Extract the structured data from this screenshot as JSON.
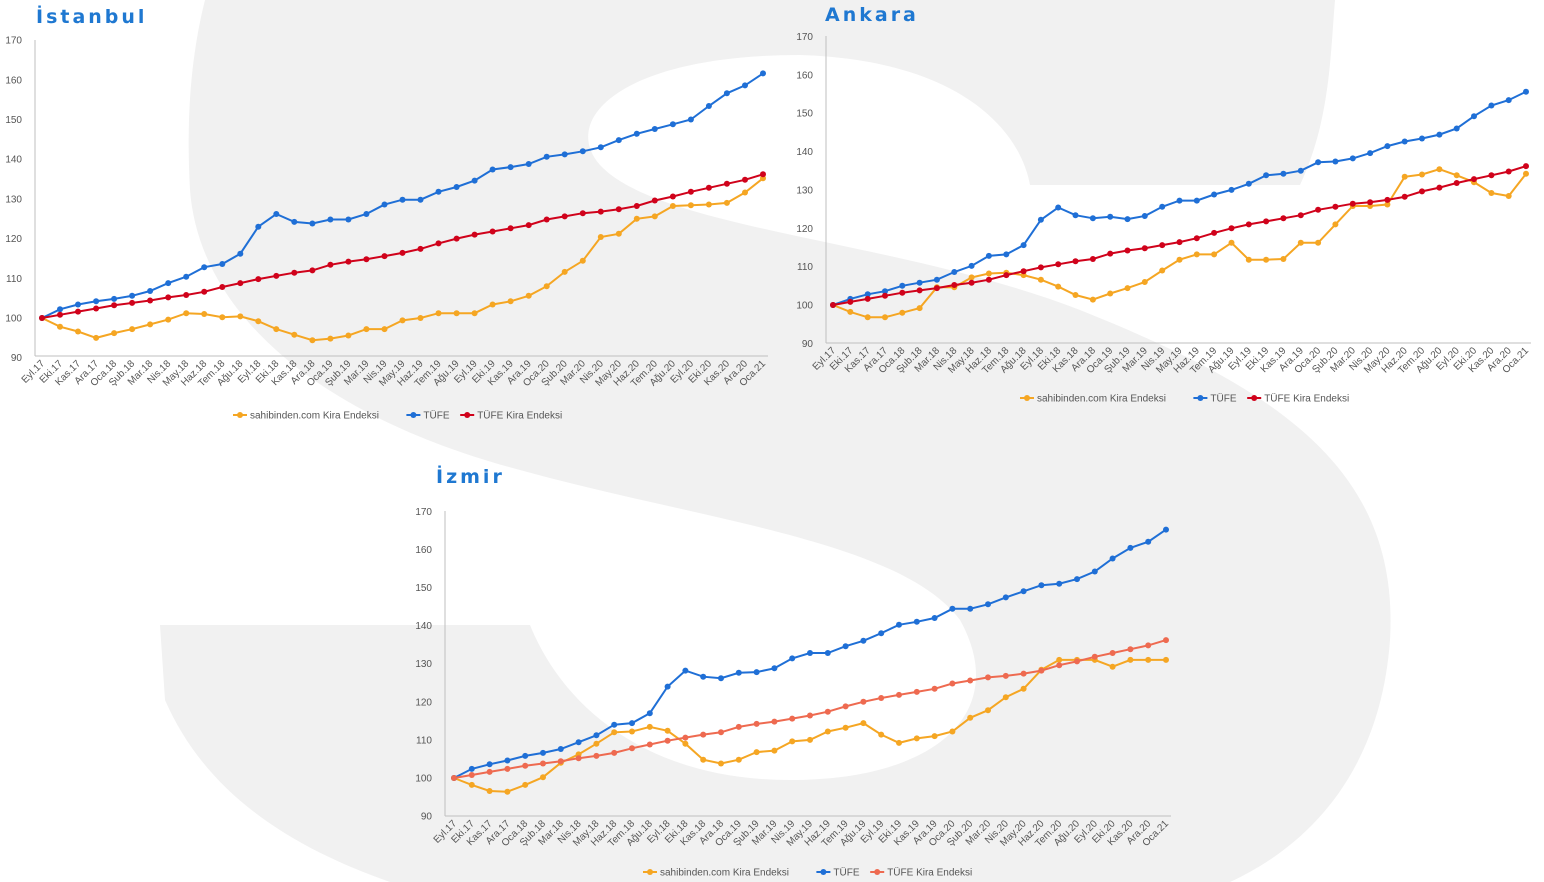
{
  "colors": {
    "orange": "#f5a623",
    "blue": "#1f6fd6",
    "red": "#d0021b",
    "salmon": "#ee6a50",
    "title": "#1f78d1"
  },
  "chart_data": [
    {
      "type": "line",
      "title": "İstanbul",
      "ylim": [
        90,
        170
      ],
      "yticks": [
        "90",
        "100",
        "110",
        "120",
        "130",
        "140",
        "150",
        "160",
        "170"
      ],
      "categories": [
        "Eyl.17",
        "Eki.17",
        "Kas.17",
        "Ara.17",
        "Oca.18",
        "Şub.18",
        "Mar.18",
        "Nis.18",
        "May.18",
        "Haz.18",
        "Tem.18",
        "Ağu.18",
        "Eyl.18",
        "Eki.18",
        "Kas.18",
        "Ara.18",
        "Oca.19",
        "Şub.19",
        "Mar.19",
        "Nis.19",
        "May.19",
        "Haz.19",
        "Tem.19",
        "Ağu.19",
        "Eyl.19",
        "Eki.19",
        "Kas.19",
        "Ara.19",
        "Oca.20",
        "Şub.20",
        "Mar.20",
        "Nis.20",
        "May.20",
        "Haz.20",
        "Tem.20",
        "Ağu.20",
        "Eyl.20",
        "Eki.20",
        "Kas.20",
        "Ara.20",
        "Oca.21"
      ],
      "series": [
        {
          "name": "sahibinden.com Kira Endeksi",
          "color": "#f5a623",
          "values": [
            100,
            97.8,
            96.6,
            95.0,
            96.2,
            97.2,
            98.4,
            99.6,
            101.2,
            101.0,
            100.2,
            100.4,
            99.2,
            97.2,
            95.8,
            94.4,
            94.8,
            95.6,
            97.2,
            97.2,
            99.4,
            100.0,
            101.2,
            101.2,
            101.2,
            103.4,
            104.2,
            105.6,
            108.0,
            111.6,
            114.4,
            120.4,
            121.2,
            125.0,
            125.6,
            128.2,
            128.4,
            128.6,
            129.0,
            131.6,
            135.2
          ]
        },
        {
          "name": "TÜFE",
          "color": "#1f6fd6",
          "values": [
            100,
            102.2,
            103.4,
            104.2,
            104.8,
            105.6,
            106.8,
            108.8,
            110.4,
            112.8,
            113.6,
            116.2,
            123.0,
            126.2,
            124.2,
            123.8,
            124.8,
            124.8,
            126.2,
            128.6,
            129.8,
            129.8,
            131.8,
            133.0,
            134.6,
            137.4,
            138.0,
            138.8,
            140.6,
            141.2,
            142.0,
            143.0,
            144.8,
            146.4,
            147.6,
            148.8,
            150.0,
            153.4,
            156.6,
            158.6,
            161.6
          ]
        },
        {
          "name": "TÜFE Kira Endeksi",
          "color": "#d0021b",
          "values": [
            100,
            100.8,
            101.6,
            102.4,
            103.2,
            103.8,
            104.4,
            105.2,
            105.8,
            106.6,
            107.8,
            108.8,
            109.8,
            110.6,
            111.4,
            112.0,
            113.4,
            114.2,
            114.8,
            115.6,
            116.4,
            117.4,
            118.8,
            120.0,
            121.0,
            121.8,
            122.6,
            123.4,
            124.8,
            125.6,
            126.4,
            126.8,
            127.4,
            128.2,
            129.6,
            130.6,
            131.8,
            132.8,
            133.8,
            134.8,
            136.2
          ]
        }
      ]
    },
    {
      "type": "line",
      "title": "Ankara",
      "ylim": [
        90,
        170
      ],
      "yticks": [
        "90",
        "100",
        "110",
        "120",
        "130",
        "140",
        "150",
        "160",
        "170"
      ],
      "categories": [
        "Eyl.17",
        "Eki.17",
        "Kas.17",
        "Ara.17",
        "Oca.18",
        "Şub.18",
        "Mar.18",
        "Nis.18",
        "May.18",
        "Haz.18",
        "Tem.18",
        "Ağu.18",
        "Eyl.18",
        "Eki.18",
        "Kas.18",
        "Ara.18",
        "Oca.19",
        "Şub.19",
        "Mar.19",
        "Nis.19",
        "May.19",
        "Haz.19",
        "Tem.19",
        "Ağu.19",
        "Eyl.19",
        "Eki.19",
        "Kas.19",
        "Ara.19",
        "Oca.20",
        "Şub.20",
        "Mar.20",
        "Nis.20",
        "May.20",
        "Haz.20",
        "Tem.20",
        "Ağu.20",
        "Eyl.20",
        "Eki.20",
        "Kas.20",
        "Ara.20",
        "Oca.21"
      ],
      "series": [
        {
          "name": "sahibinden.com Kira Endeksi",
          "color": "#f5a623",
          "values": [
            100,
            98.2,
            96.8,
            96.8,
            98.0,
            99.2,
            104.6,
            104.6,
            107.2,
            108.2,
            108.4,
            107.8,
            106.6,
            104.8,
            102.6,
            101.4,
            103.0,
            104.4,
            106.0,
            109.0,
            111.8,
            113.2,
            113.2,
            116.2,
            111.8,
            111.8,
            112.0,
            116.2,
            116.2,
            121.0,
            125.8,
            125.8,
            126.2,
            133.4,
            134.0,
            135.4,
            133.8,
            132.0,
            129.2,
            128.4,
            134.2
          ]
        },
        {
          "name": "TÜFE",
          "color": "#1f6fd6",
          "values": [
            100,
            101.6,
            102.8,
            103.6,
            105.0,
            105.8,
            106.6,
            108.6,
            110.2,
            112.8,
            113.2,
            115.6,
            122.2,
            125.4,
            123.4,
            122.6,
            123.0,
            122.4,
            123.2,
            125.6,
            127.2,
            127.2,
            128.8,
            130.0,
            131.6,
            133.8,
            134.2,
            135.0,
            137.2,
            137.4,
            138.2,
            139.6,
            141.4,
            142.6,
            143.4,
            144.4,
            146.0,
            149.2,
            152.0,
            153.4,
            155.6
          ]
        },
        {
          "name": "TÜFE Kira Endeksi",
          "color": "#d0021b",
          "values": [
            100,
            100.8,
            101.6,
            102.4,
            103.2,
            103.8,
            104.4,
            105.2,
            105.8,
            106.6,
            107.8,
            108.8,
            109.8,
            110.6,
            111.4,
            112.0,
            113.4,
            114.2,
            114.8,
            115.6,
            116.4,
            117.4,
            118.8,
            120.0,
            121.0,
            121.8,
            122.6,
            123.4,
            124.8,
            125.6,
            126.4,
            126.8,
            127.4,
            128.2,
            129.6,
            130.6,
            131.8,
            132.8,
            133.8,
            134.8,
            136.2
          ]
        }
      ]
    },
    {
      "type": "line",
      "title": "İzmir",
      "ylim": [
        90,
        170
      ],
      "yticks": [
        "90",
        "100",
        "110",
        "120",
        "130",
        "140",
        "150",
        "160",
        "170"
      ],
      "categories": [
        "Eyl.17",
        "Eki.17",
        "Kas.17",
        "Ara.17",
        "Oca.18",
        "Şub.18",
        "Mar.18",
        "Nis.18",
        "May.18",
        "Haz.18",
        "Tem.18",
        "Ağu.18",
        "Eyl.18",
        "Eki.18",
        "Kas.18",
        "Ara.18",
        "Oca.19",
        "Şub.19",
        "Mar.19",
        "Nis.19",
        "May.19",
        "Haz.19",
        "Tem.19",
        "Ağu.19",
        "Eyl.19",
        "Eki.19",
        "Kas.19",
        "Ara.19",
        "Oca.20",
        "Şub.20",
        "Mar.20",
        "Nis.20",
        "May.20",
        "Haz.20",
        "Tem.20",
        "Ağu.20",
        "Eyl.20",
        "Eki.20",
        "Kas.20",
        "Ara.20",
        "Oca.21"
      ],
      "series": [
        {
          "name": "sahibinden.com Kira Endeksi",
          "color": "#f5a623",
          "values": [
            100,
            98.2,
            96.6,
            96.4,
            98.2,
            100.2,
            104.0,
            106.2,
            109.0,
            112.0,
            112.2,
            113.4,
            112.4,
            109.0,
            104.8,
            103.8,
            104.8,
            106.8,
            107.2,
            109.6,
            110.0,
            112.2,
            113.2,
            114.4,
            111.4,
            109.2,
            110.4,
            111.0,
            112.2,
            115.8,
            117.8,
            121.2,
            123.4,
            128.4,
            131.0,
            131.0,
            131.0,
            129.2,
            131.0,
            131.0,
            131.0
          ]
        },
        {
          "name": "TÜFE",
          "color": "#1f6fd6",
          "values": [
            100,
            102.4,
            103.6,
            104.6,
            105.8,
            106.6,
            107.6,
            109.4,
            111.2,
            114.0,
            114.4,
            117.0,
            124.0,
            128.2,
            126.6,
            126.2,
            127.6,
            127.8,
            128.8,
            131.4,
            132.8,
            132.8,
            134.6,
            136.0,
            138.0,
            140.2,
            141.0,
            142.0,
            144.4,
            144.4,
            145.6,
            147.4,
            149.0,
            150.6,
            151.0,
            152.2,
            154.2,
            157.6,
            160.4,
            162.0,
            165.2
          ]
        },
        {
          "name": "TÜFE Kira Endeksi",
          "color": "#ee6a50",
          "values": [
            100,
            100.8,
            101.6,
            102.4,
            103.2,
            103.8,
            104.4,
            105.2,
            105.8,
            106.6,
            107.8,
            108.8,
            109.8,
            110.6,
            111.4,
            112.0,
            113.4,
            114.2,
            114.8,
            115.6,
            116.4,
            117.4,
            118.8,
            120.0,
            121.0,
            121.8,
            122.6,
            123.4,
            124.8,
            125.6,
            126.4,
            126.8,
            127.4,
            128.2,
            129.6,
            130.6,
            131.8,
            132.8,
            133.8,
            134.8,
            136.2
          ]
        }
      ]
    }
  ]
}
